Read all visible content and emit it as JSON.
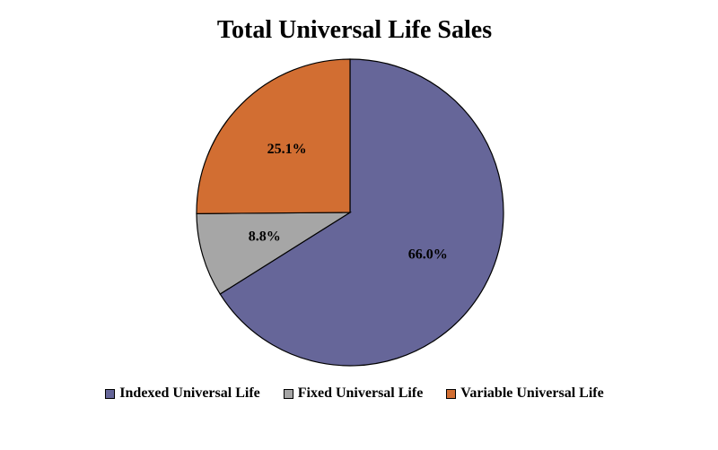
{
  "chart_data": {
    "type": "pie",
    "title": "Total Universal Life Sales",
    "legend_position": "bottom",
    "slices": [
      {
        "name": "Indexed Universal Life",
        "value": 66.0,
        "label": "66.0%",
        "color": "#666699"
      },
      {
        "name": "Fixed Universal Life",
        "value": 8.8,
        "label": "8.8%",
        "color": "#a6a6a6"
      },
      {
        "name": "Variable Universal Life",
        "value": 25.1,
        "label": "25.1%",
        "color": "#d26e32"
      }
    ]
  }
}
